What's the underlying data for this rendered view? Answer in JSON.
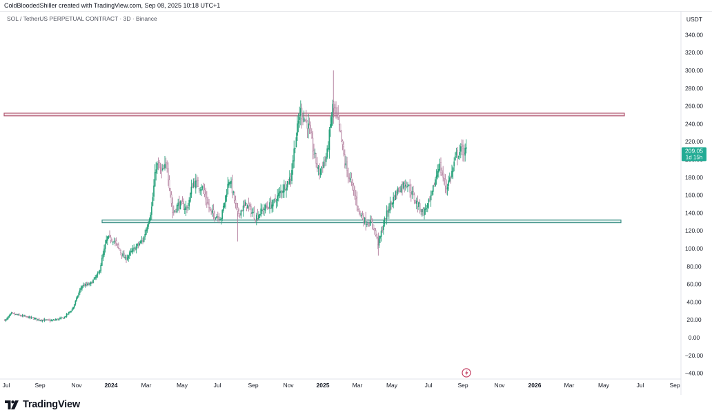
{
  "header": {
    "credit": "ColdBloodedShiller created with TradingView.com, Sep 08, 2025 10:18 UTC+1"
  },
  "symbol": {
    "title": "SOL / TetherUS PERPETUAL CONTRACT · 3D · Binance"
  },
  "price_axis": {
    "unit": "USDT",
    "ticks": [
      "340.00",
      "320.00",
      "300.00",
      "280.00",
      "260.00",
      "240.00",
      "220.00",
      "200.00",
      "180.00",
      "160.00",
      "140.00",
      "120.00",
      "100.00",
      "80.00",
      "60.00",
      "40.00",
      "20.00",
      "0.00",
      "−20.00",
      "−40.00"
    ]
  },
  "last_price": {
    "value": "209.05",
    "countdown": "1d 15h",
    "color": "#22ab94"
  },
  "time_axis": {
    "ticks": [
      "Jul",
      "Sep",
      "Nov",
      "2024",
      "Mar",
      "May",
      "Jul",
      "Sep",
      "Nov",
      "2025",
      "Mar",
      "May",
      "Jul",
      "Sep",
      "Nov",
      "2026",
      "Mar",
      "May",
      "Jul",
      "Sep"
    ],
    "bold": [
      "2024",
      "2025",
      "2026"
    ]
  },
  "footer": {
    "brand": "TradingView"
  },
  "colors": {
    "resistance": "#b0556e",
    "support": "#3b8f86",
    "candle_up": "#26a17a",
    "candle_down": "#b07a9a"
  },
  "chart_data": {
    "type": "candlestick",
    "title": "SOL / TetherUS PERPETUAL CONTRACT · 3D · Binance",
    "x_range": [
      "2023-07",
      "2026-09"
    ],
    "ylim": [
      -45,
      350
    ],
    "y_unit": "USDT",
    "levels": [
      {
        "type": "resistance-zone",
        "low": 249,
        "high": 252,
        "from": "2023-07",
        "to": "2026-04"
      },
      {
        "type": "support-zone",
        "low": 129,
        "high": 132,
        "from": "2023-12",
        "to": "2026-04"
      }
    ],
    "price_path": [
      {
        "date": "2023-07-01",
        "close": 20
      },
      {
        "date": "2023-07-10",
        "close": 27
      },
      {
        "date": "2023-08-01",
        "close": 24
      },
      {
        "date": "2023-09-01",
        "close": 20
      },
      {
        "date": "2023-09-20",
        "close": 19
      },
      {
        "date": "2023-10-10",
        "close": 22
      },
      {
        "date": "2023-10-25",
        "close": 32
      },
      {
        "date": "2023-11-10",
        "close": 58
      },
      {
        "date": "2023-11-25",
        "close": 60
      },
      {
        "date": "2023-12-10",
        "close": 72
      },
      {
        "date": "2023-12-25",
        "close": 112
      },
      {
        "date": "2024-01-05",
        "close": 110
      },
      {
        "date": "2024-01-25",
        "close": 88
      },
      {
        "date": "2024-02-10",
        "close": 100
      },
      {
        "date": "2024-02-25",
        "close": 110
      },
      {
        "date": "2024-03-10",
        "close": 145
      },
      {
        "date": "2024-03-18",
        "close": 195
      },
      {
        "date": "2024-03-28",
        "close": 185
      },
      {
        "date": "2024-04-05",
        "close": 195
      },
      {
        "date": "2024-04-15",
        "close": 140
      },
      {
        "date": "2024-04-25",
        "close": 150
      },
      {
        "date": "2024-05-10",
        "close": 145
      },
      {
        "date": "2024-05-20",
        "close": 175
      },
      {
        "date": "2024-06-05",
        "close": 168
      },
      {
        "date": "2024-06-20",
        "close": 140
      },
      {
        "date": "2024-07-08",
        "close": 135
      },
      {
        "date": "2024-07-22",
        "close": 180
      },
      {
        "date": "2024-08-05",
        "close": 138
      },
      {
        "date": "2024-08-20",
        "close": 150
      },
      {
        "date": "2024-09-05",
        "close": 135
      },
      {
        "date": "2024-09-20",
        "close": 145
      },
      {
        "date": "2024-10-05",
        "close": 150
      },
      {
        "date": "2024-10-20",
        "close": 165
      },
      {
        "date": "2024-11-05",
        "close": 180
      },
      {
        "date": "2024-11-12",
        "close": 215
      },
      {
        "date": "2024-11-22",
        "close": 255
      },
      {
        "date": "2024-12-05",
        "close": 240
      },
      {
        "date": "2024-12-15",
        "close": 210
      },
      {
        "date": "2024-12-25",
        "close": 185
      },
      {
        "date": "2025-01-08",
        "close": 205
      },
      {
        "date": "2025-01-18",
        "close": 260
      },
      {
        "date": "2025-01-28",
        "close": 240
      },
      {
        "date": "2025-02-08",
        "close": 195
      },
      {
        "date": "2025-02-20",
        "close": 170
      },
      {
        "date": "2025-03-05",
        "close": 140
      },
      {
        "date": "2025-03-15",
        "close": 130
      },
      {
        "date": "2025-03-28",
        "close": 128
      },
      {
        "date": "2025-04-07",
        "close": 105
      },
      {
        "date": "2025-04-15",
        "close": 125
      },
      {
        "date": "2025-04-25",
        "close": 145
      },
      {
        "date": "2025-05-10",
        "close": 165
      },
      {
        "date": "2025-05-25",
        "close": 175
      },
      {
        "date": "2025-06-08",
        "close": 155
      },
      {
        "date": "2025-06-22",
        "close": 140
      },
      {
        "date": "2025-07-05",
        "close": 155
      },
      {
        "date": "2025-07-20",
        "close": 195
      },
      {
        "date": "2025-08-02",
        "close": 168
      },
      {
        "date": "2025-08-12",
        "close": 185
      },
      {
        "date": "2025-08-20",
        "close": 205
      },
      {
        "date": "2025-08-28",
        "close": 210
      },
      {
        "date": "2025-09-08",
        "close": 209.05
      }
    ]
  }
}
